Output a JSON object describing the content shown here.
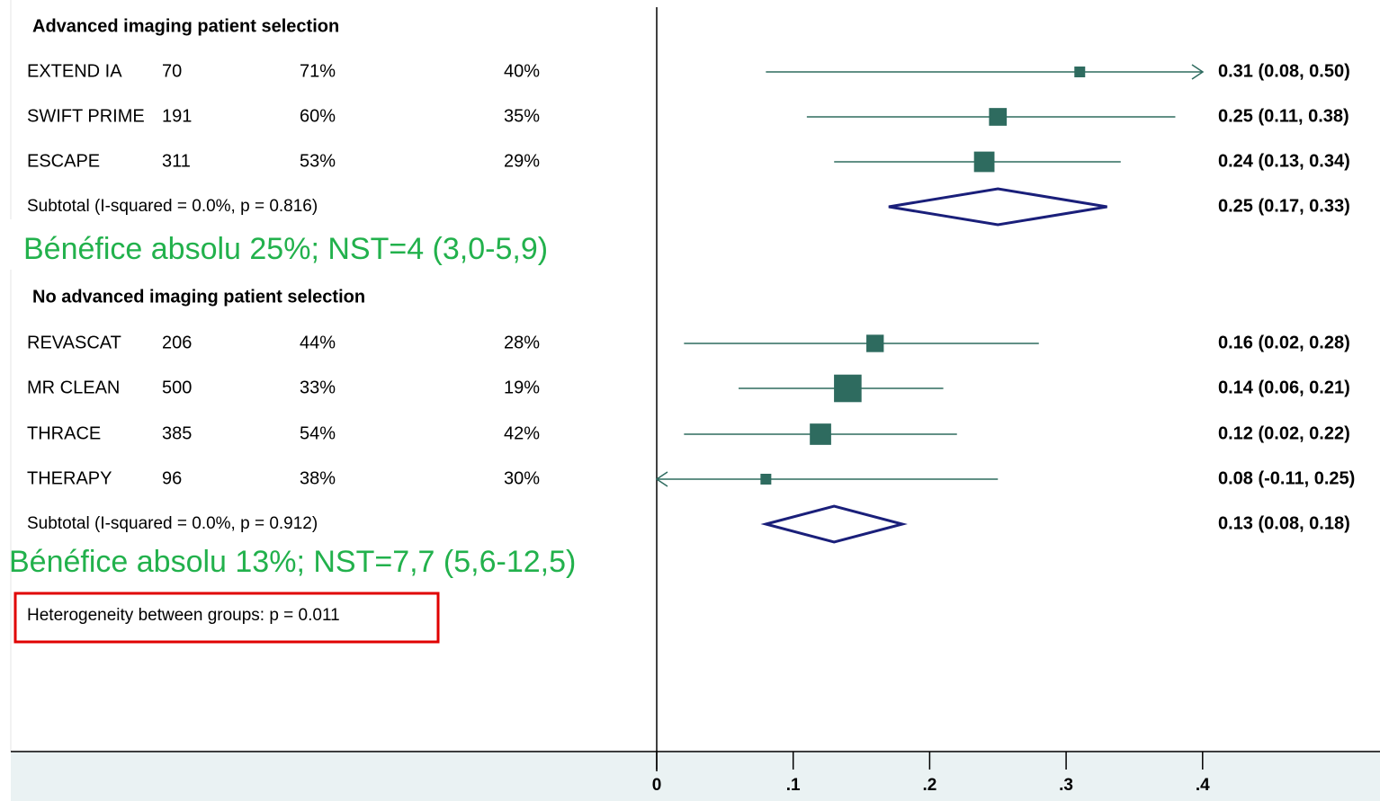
{
  "chart_data": {
    "type": "forest",
    "xlim": [
      0,
      0.52
    ],
    "x_ticks": [
      {
        "value": 0,
        "label": "0"
      },
      {
        "value": 0.1,
        "label": ".1"
      },
      {
        "value": 0.2,
        "label": ".2"
      },
      {
        "value": 0.3,
        "label": ".3"
      },
      {
        "value": 0.4,
        "label": ".4"
      }
    ],
    "groups": [
      {
        "heading": "Advanced imaging patient selection",
        "studies": [
          {
            "name": "EXTEND IA",
            "n": "70",
            "pct1": "71%",
            "pct2": "40%",
            "estimate": 0.31,
            "lower": 0.08,
            "upper": 0.5,
            "label": "0.31 (0.08, 0.50)",
            "weight": 1
          },
          {
            "name": "SWIFT PRIME",
            "n": "191",
            "pct1": "60%",
            "pct2": "35%",
            "estimate": 0.25,
            "lower": 0.11,
            "upper": 0.38,
            "label": "0.25 (0.11, 0.38)",
            "weight": 2.7
          },
          {
            "name": "ESCAPE",
            "n": "311",
            "pct1": "53%",
            "pct2": "29%",
            "estimate": 0.24,
            "lower": 0.13,
            "upper": 0.34,
            "label": "0.24 (0.13, 0.34)",
            "weight": 3.6
          }
        ],
        "subtotal": {
          "text": "Subtotal  (I-squared = 0.0%, p = 0.816)",
          "estimate": 0.25,
          "lower": 0.17,
          "upper": 0.33,
          "label": "0.25 (0.17, 0.33)"
        },
        "annotation": "Bénéfice absolu 25%; NST=4 (3,0-5,9)"
      },
      {
        "heading": "No advanced imaging patient selection",
        "studies": [
          {
            "name": "REVASCAT",
            "n": "206",
            "pct1": "44%",
            "pct2": "28%",
            "estimate": 0.16,
            "lower": 0.02,
            "upper": 0.28,
            "label": "0.16 (0.02, 0.28)",
            "weight": 2.6
          },
          {
            "name": "MR CLEAN",
            "n": "500",
            "pct1": "33%",
            "pct2": "19%",
            "estimate": 0.14,
            "lower": 0.06,
            "upper": 0.21,
            "label": "0.14 (0.06, 0.21)",
            "weight": 6.5
          },
          {
            "name": "THRACE",
            "n": "385",
            "pct1": "54%",
            "pct2": "42%",
            "estimate": 0.12,
            "lower": 0.02,
            "upper": 0.22,
            "label": "0.12 (0.02, 0.22)",
            "weight": 3.9
          },
          {
            "name": "THERAPY",
            "n": "96",
            "pct1": "38%",
            "pct2": "30%",
            "estimate": 0.08,
            "lower": -0.11,
            "upper": 0.25,
            "label": "0.08 (-0.11, 0.25)",
            "weight": 1
          }
        ],
        "subtotal": {
          "text": "Subtotal  (I-squared = 0.0%, p = 0.912)",
          "estimate": 0.13,
          "lower": 0.08,
          "upper": 0.18,
          "label": "0.13 (0.08, 0.18)"
        },
        "annotation": "Bénéfice absolu 13%; NST=7,7 (5,6-12,5)"
      }
    ],
    "heterogeneity": "Heterogeneity between groups: p = 0.011",
    "colors": {
      "marker": "#2e6b5f",
      "diamond": "#1a1f7a",
      "annotation": "#22b14c",
      "highlight_box": "#e00000",
      "axis_band": "#eaf2f3"
    }
  }
}
